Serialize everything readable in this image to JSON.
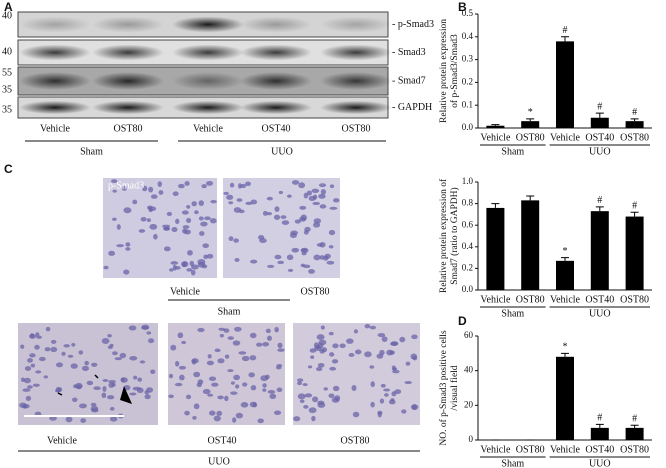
{
  "panel_A": {
    "letter": "A",
    "markers": [
      40,
      40,
      55,
      35,
      35
    ],
    "bands": [
      "- p-Smad3",
      "- Smad3",
      "- Smad7",
      "- GAPDH"
    ],
    "lanes": [
      "Vehicle",
      "OST80",
      "Vehicle",
      "OST40",
      "OST80"
    ],
    "groups": [
      {
        "name": "Sham",
        "size": 2
      },
      {
        "name": "UUO",
        "size": 3
      }
    ]
  },
  "panel_B": {
    "letter": "B"
  },
  "panel_C": {
    "letter": "C",
    "stain": "p-Smad3",
    "top_captions": [
      "Vehicle",
      "OST80"
    ],
    "top_group": "Sham",
    "bottom_captions": [
      "Vehicle",
      "OST40",
      "OST80"
    ],
    "bottom_group": "UUO"
  },
  "panel_D": {
    "letter": "D"
  },
  "chart_data": [
    {
      "type": "bar",
      "ylabel": [
        "Relative protein expression",
        "of p-Smad3/Smad3"
      ],
      "categories": [
        "Vehicle",
        "OST80",
        "Vehicle",
        "OST40",
        "OST80"
      ],
      "groups": [
        {
          "name": "Sham",
          "size": 2
        },
        {
          "name": "UUO",
          "size": 3
        }
      ],
      "values": [
        0.01,
        0.03,
        0.38,
        0.045,
        0.03
      ],
      "errors": [
        0.005,
        0.01,
        0.02,
        0.02,
        0.01
      ],
      "annotations": [
        null,
        "*",
        "#",
        "#",
        "#"
      ],
      "color": "#000000",
      "ylim": [
        0,
        0.5
      ],
      "yticks": [
        {
          "value": 0,
          "label": "0.0"
        },
        0.1,
        0.2,
        0.3,
        0.4,
        0.5
      ]
    },
    {
      "type": "bar",
      "ylabel": [
        "Relative protein expression of",
        "Smad7 (ratio to GAPDH)"
      ],
      "categories": [
        "Vehicle",
        "OST80",
        "Vehicle",
        "OST40",
        "OST80"
      ],
      "groups": [
        {
          "name": "Sham",
          "size": 2
        },
        {
          "name": "UUO",
          "size": 3
        }
      ],
      "values": [
        0.76,
        0.83,
        0.27,
        0.73,
        0.68
      ],
      "errors": [
        0.04,
        0.04,
        0.03,
        0.04,
        0.04
      ],
      "annotations": [
        null,
        null,
        "*",
        "#",
        "#"
      ],
      "color": "#000000",
      "ylim": [
        0,
        1
      ],
      "yticks": [
        {
          "value": 0,
          "label": "0.0"
        },
        0.2,
        0.4,
        0.6,
        0.8,
        {
          "value": 1,
          "label": "1.0"
        }
      ]
    },
    {
      "type": "bar",
      "ylabel": [
        "NO. of p-Smad3 positive cells",
        "/visual field"
      ],
      "categories": [
        "Vehicle",
        "OST80",
        "Vehicle",
        "OST40",
        "OST80"
      ],
      "groups": [
        {
          "name": "Sham",
          "size": 2
        },
        {
          "name": "UUO",
          "size": 3
        }
      ],
      "values": [
        0,
        0,
        48,
        7,
        7
      ],
      "errors": [
        0,
        0,
        2,
        2,
        1.5
      ],
      "annotations": [
        null,
        null,
        "*",
        "#",
        "#"
      ],
      "color": "#000000",
      "ylim": [
        0,
        60
      ],
      "yticks": [
        0,
        20,
        40,
        60
      ]
    }
  ]
}
